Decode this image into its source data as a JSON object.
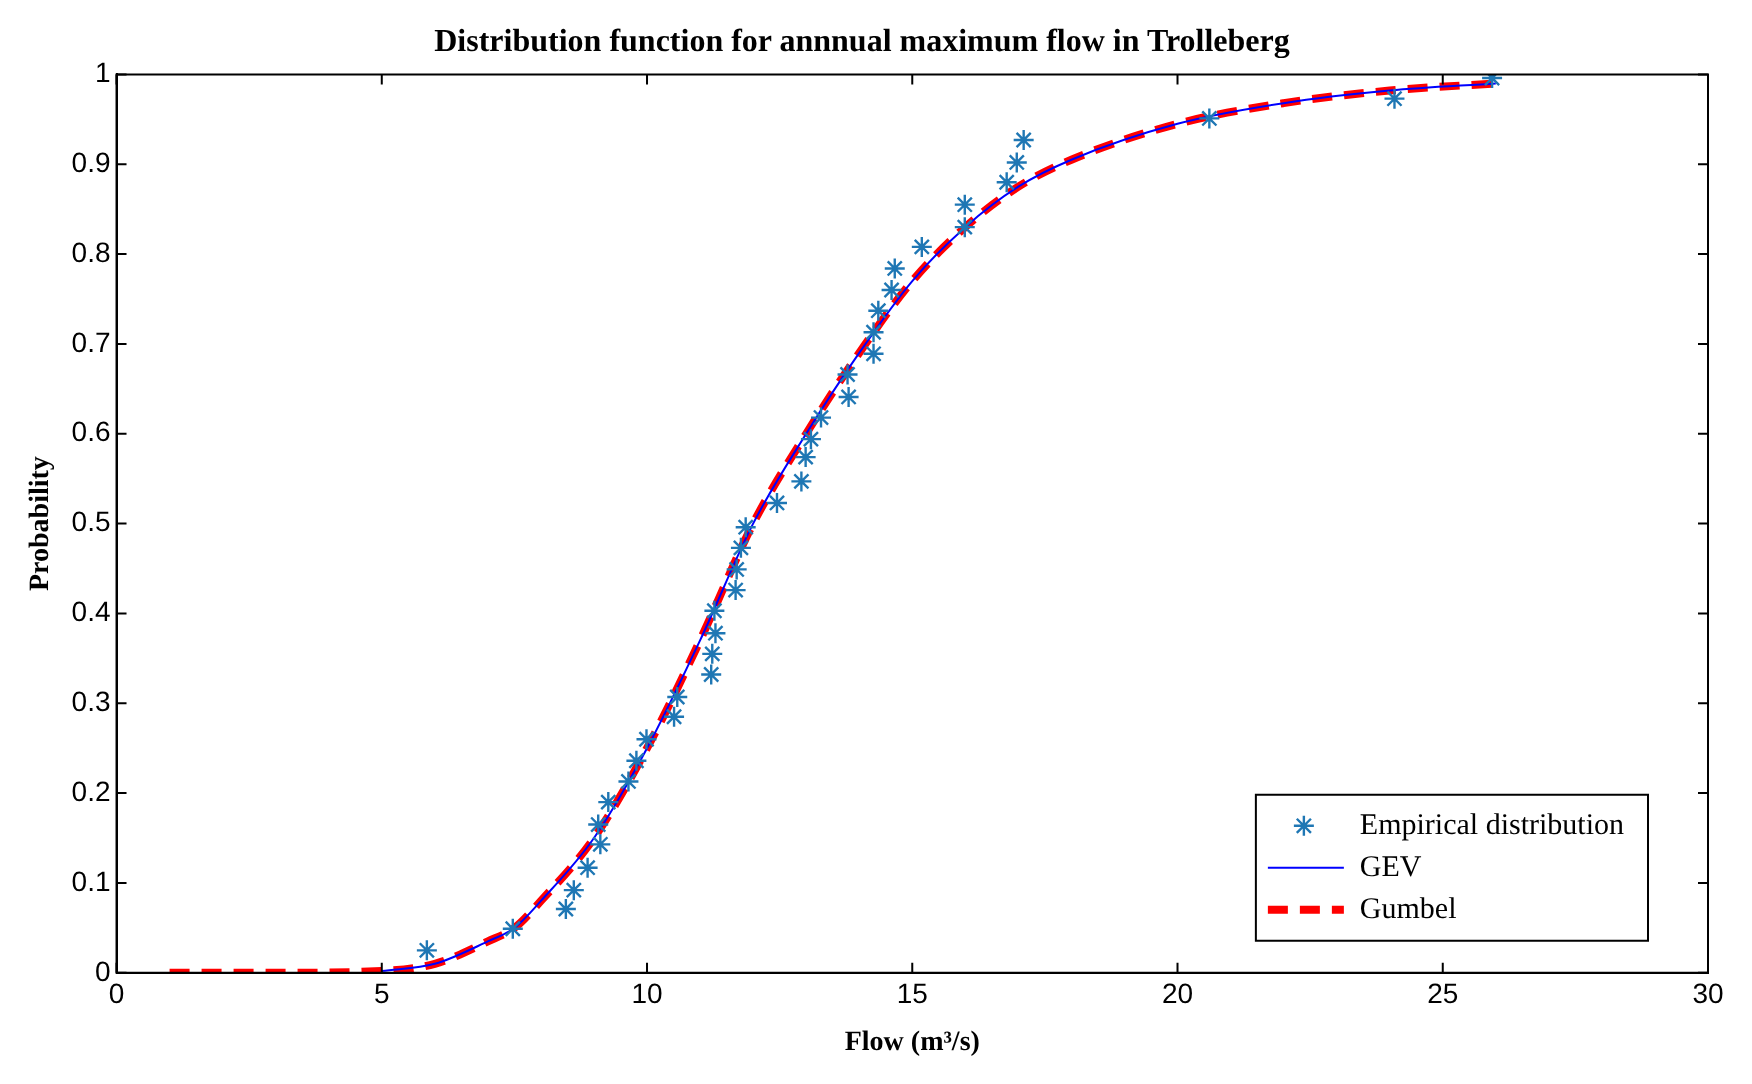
{
  "chart_data": {
    "type": "scatter",
    "title": "Distribution function for annnual maximum flow in Trolleberg",
    "xlabel": "Flow (m³/s)",
    "ylabel": "Probability",
    "xlim": [
      0,
      30
    ],
    "xticks": [
      0,
      5,
      10,
      15,
      20,
      25,
      30
    ],
    "ylim": [
      0,
      1
    ],
    "yticks": [
      0,
      0.1,
      0.2,
      0.3,
      0.4,
      0.5,
      0.6,
      0.7,
      0.8,
      0.9,
      1
    ],
    "grid": false,
    "legend": "bottom right",
    "series": [
      {
        "name": "Empirical distribution",
        "type": "scatter",
        "marker": "cross",
        "color": "#1f77b4",
        "x": [
          5.85,
          7.47,
          8.47,
          8.62,
          8.88,
          9.12,
          9.08,
          9.27,
          9.65,
          9.8,
          9.99,
          10.51,
          10.57,
          11.21,
          11.23,
          11.29,
          11.27,
          11.67,
          11.69,
          11.77,
          11.86,
          12.45,
          12.91,
          12.99,
          13.09,
          13.28,
          13.8,
          13.78,
          14.27,
          14.27,
          14.36,
          14.61,
          14.67,
          15.18,
          15.99,
          15.99,
          16.78,
          16.97,
          17.1,
          20.6,
          24.09,
          25.93
        ],
        "values": [
          0.025,
          0.049,
          0.071,
          0.092,
          0.117,
          0.143,
          0.165,
          0.19,
          0.213,
          0.236,
          0.26,
          0.285,
          0.307,
          0.332,
          0.355,
          0.378,
          0.403,
          0.426,
          0.449,
          0.473,
          0.496,
          0.523,
          0.547,
          0.574,
          0.594,
          0.618,
          0.641,
          0.666,
          0.689,
          0.713,
          0.737,
          0.76,
          0.784,
          0.808,
          0.83,
          0.855,
          0.88,
          0.902,
          0.927,
          0.951,
          0.973,
          0.996
        ]
      },
      {
        "name": "GEV",
        "type": "line",
        "line_style": "solid",
        "color": "#0000ff",
        "x": [
          5,
          6,
          7,
          7.5,
          8,
          9,
          10,
          11,
          12,
          13,
          14,
          15,
          16,
          17,
          18,
          20,
          22,
          24,
          26
        ],
        "values": [
          0.002,
          0.01,
          0.035,
          0.05,
          0.08,
          0.15,
          0.25,
          0.37,
          0.5,
          0.6,
          0.69,
          0.77,
          0.83,
          0.875,
          0.905,
          0.945,
          0.968,
          0.982,
          0.99
        ]
      },
      {
        "name": "Gumbel",
        "type": "line",
        "line_style": "dashed",
        "color": "#ff0000",
        "x": [
          1,
          3,
          5,
          6,
          7,
          7.5,
          8,
          9,
          10,
          11,
          12,
          13,
          14,
          15,
          16,
          17,
          18,
          20,
          22,
          24,
          26
        ],
        "values": [
          0,
          0,
          0.002,
          0.01,
          0.035,
          0.05,
          0.08,
          0.15,
          0.25,
          0.37,
          0.5,
          0.6,
          0.69,
          0.77,
          0.83,
          0.875,
          0.905,
          0.945,
          0.968,
          0.982,
          0.99
        ]
      }
    ]
  }
}
